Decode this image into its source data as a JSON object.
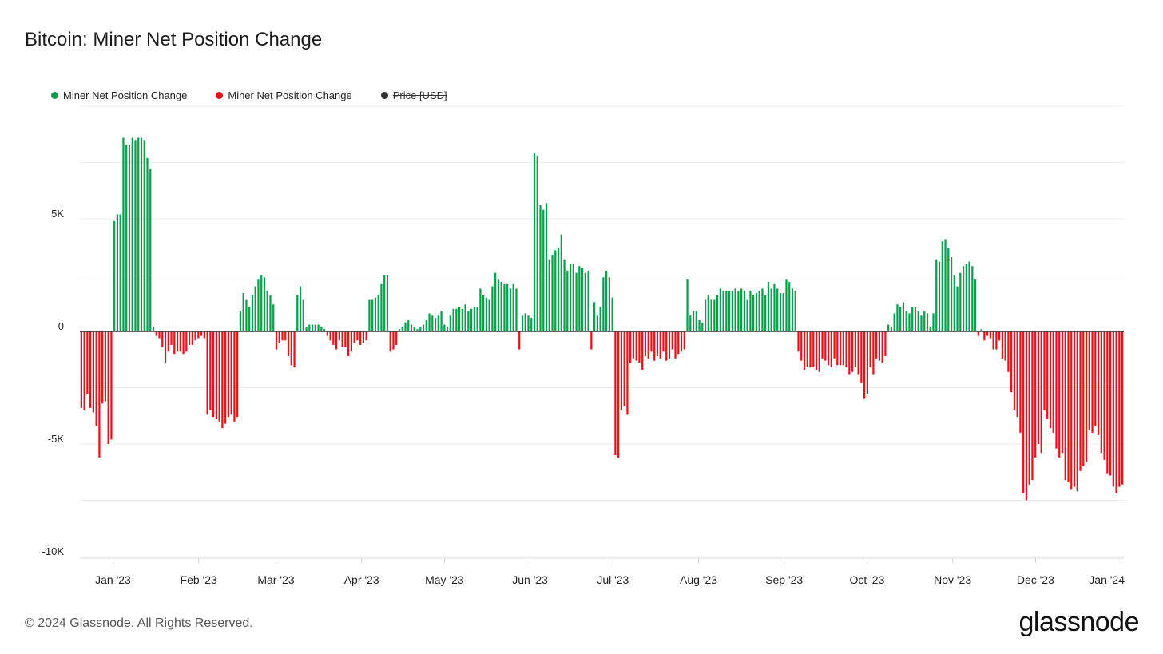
{
  "title": "Bitcoin: Miner Net Position Change",
  "legend": [
    {
      "label": "Miner Net Position Change",
      "color": "#0c9d4e"
    },
    {
      "label": "Miner Net Position Change",
      "color": "#e3131b"
    },
    {
      "label": "Price [USD]",
      "color": "#333333",
      "disabled": true
    }
  ],
  "footer": "© 2024 Glassnode. All Rights Reserved.",
  "brand": "glassnode",
  "chart_data": {
    "type": "bar",
    "title": "Bitcoin: Miner Net Position Change",
    "ylim": [
      -10000,
      10000
    ],
    "yticks": [
      {
        "v": 5000,
        "label": "5K"
      },
      {
        "v": 0,
        "label": "0"
      },
      {
        "v": -5000,
        "label": "-5K"
      },
      {
        "v": -10000,
        "label": "-10K"
      }
    ],
    "x_start": "2022-12-20",
    "x_end": "2024-01-02",
    "xticks": [
      {
        "date": "2023-01-01",
        "label": "Jan '23"
      },
      {
        "date": "2023-02-01",
        "label": "Feb '23"
      },
      {
        "date": "2023-03-01",
        "label": "Mar '23"
      },
      {
        "date": "2023-04-01",
        "label": "Apr '23"
      },
      {
        "date": "2023-05-01",
        "label": "May '23"
      },
      {
        "date": "2023-06-01",
        "label": "Jun '23"
      },
      {
        "date": "2023-07-01",
        "label": "Jul '23"
      },
      {
        "date": "2023-08-01",
        "label": "Aug '23"
      },
      {
        "date": "2023-09-01",
        "label": "Sep '23"
      },
      {
        "date": "2023-10-01",
        "label": "Oct '23"
      },
      {
        "date": "2023-11-01",
        "label": "Nov '23"
      },
      {
        "date": "2023-12-01",
        "label": "Dec '23"
      },
      {
        "date": "2024-01-01",
        "label": "Jan '24"
      }
    ],
    "positive_color": "#0c9d4e",
    "negative_color": "#e3131b",
    "grid": true,
    "series": [
      {
        "values": [
          -3400,
          -3500,
          -2800,
          -3400,
          -3600,
          -4200,
          -5600,
          -3200,
          -3100,
          -5000,
          -4800,
          4900,
          5200,
          5200,
          8600,
          8300,
          8300,
          8600,
          8500,
          8600,
          8600,
          8500,
          7700,
          7200,
          200,
          -200,
          -300,
          -700,
          -1400,
          -900,
          -600,
          -1000,
          -900,
          -900,
          -1000,
          -900,
          -600,
          -600,
          -400,
          -300,
          -200,
          -300,
          -3700,
          -3500,
          -3800,
          -3900,
          -4000,
          -4300,
          -4100,
          -3800,
          -3700,
          -4000,
          -3800,
          900,
          1700,
          1400,
          1100,
          1600,
          2000,
          2300,
          2500,
          2400,
          1800,
          1600,
          1200,
          -800,
          -500,
          -400,
          -400,
          -1100,
          -1500,
          -1600,
          1600,
          2000,
          1400,
          200,
          300,
          300,
          300,
          300,
          200,
          100,
          -200,
          -400,
          -600,
          -800,
          -400,
          -700,
          -700,
          -1100,
          -900,
          -500,
          -400,
          -600,
          -500,
          -400,
          1400,
          1400,
          1500,
          1600,
          2100,
          2500,
          2500,
          -900,
          -800,
          -600,
          100,
          200,
          400,
          500,
          300,
          200,
          100,
          200,
          300,
          500,
          800,
          700,
          600,
          700,
          900,
          300,
          200,
          700,
          1000,
          1000,
          1100,
          1000,
          1200,
          900,
          1000,
          1100,
          1100,
          1900,
          1600,
          1500,
          1400,
          2000,
          2600,
          2300,
          2200,
          2100,
          2100,
          1900,
          2100,
          1900,
          -800,
          700,
          800,
          700,
          600,
          7900,
          7800,
          5600,
          5400,
          5700,
          3200,
          3400,
          3600,
          3700,
          4300,
          3200,
          2700,
          3000,
          3000,
          2600,
          2900,
          2800,
          2600,
          2700,
          -800,
          1300,
          700,
          1100,
          2400,
          2700,
          2400,
          1500,
          -5500,
          -5600,
          -3500,
          -3300,
          -3700,
          -1400,
          -1200,
          -1300,
          -1400,
          -1700,
          -1100,
          -1200,
          -900,
          -1300,
          -1100,
          -1200,
          -900,
          -1300,
          -1200,
          -800,
          -1200,
          -1000,
          -900,
          -800,
          2300,
          700,
          900,
          900,
          500,
          400,
          1400,
          1600,
          1400,
          1400,
          1600,
          1900,
          1800,
          1800,
          1800,
          1800,
          1900,
          1800,
          1900,
          1800,
          1400,
          1800,
          1600,
          1700,
          1800,
          1900,
          1600,
          2200,
          1900,
          2100,
          1900,
          1700,
          1700,
          2300,
          2200,
          1900,
          1800,
          -900,
          -1300,
          -1700,
          -1600,
          -1600,
          -1600,
          -1700,
          -1800,
          -1200,
          -1300,
          -1500,
          -1600,
          -1200,
          -1500,
          -1500,
          -1500,
          -1600,
          -1900,
          -1800,
          -1600,
          -1900,
          -2300,
          -3000,
          -2800,
          -1600,
          -1900,
          -1200,
          -1300,
          -1400,
          -1100,
          300,
          200,
          800,
          1200,
          1100,
          1300,
          900,
          800,
          1100,
          1100,
          900,
          700,
          900,
          800,
          200,
          800,
          3200,
          3100,
          4000,
          4100,
          3700,
          3300,
          2500,
          2000,
          2600,
          2900,
          3000,
          3100,
          2900,
          2300,
          -200,
          100,
          -400,
          -200,
          -300,
          -800,
          -800,
          -400,
          -1200,
          -1300,
          -1800,
          -2700,
          -3500,
          -3800,
          -4500,
          -7200,
          -7500,
          -6800,
          -6600,
          -5600,
          -5000,
          -5400,
          -3500,
          -3900,
          -4300,
          -4500,
          -5200,
          -5600,
          -5400,
          -6600,
          -6700,
          -7000,
          -6900,
          -7100,
          -6200,
          -6000,
          -5800,
          -4400,
          -4500,
          -4200,
          -4600,
          -5400,
          -5700,
          -6300,
          -6400,
          -6900,
          -7200,
          -6900,
          -6800
        ]
      }
    ]
  }
}
